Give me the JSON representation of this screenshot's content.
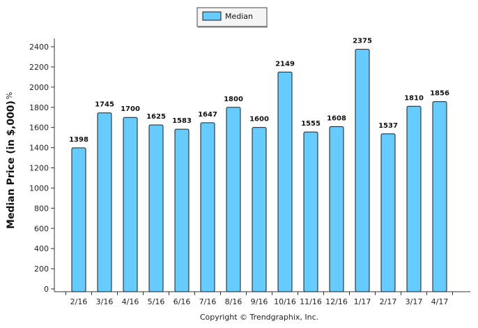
{
  "chart_data": {
    "type": "bar",
    "categories": [
      "2/16",
      "3/16",
      "4/16",
      "5/16",
      "6/16",
      "7/16",
      "8/16",
      "9/16",
      "10/16",
      "11/16",
      "12/16",
      "1/17",
      "2/17",
      "3/17",
      "4/17"
    ],
    "series": [
      {
        "name": "Median",
        "values": [
          1398,
          1745,
          1700,
          1625,
          1583,
          1647,
          1800,
          1600,
          2149,
          1555,
          1608,
          2375,
          1537,
          1810,
          1856
        ]
      }
    ],
    "title": "",
    "xlabel": "",
    "ylabel": "Median Price (in $,000)",
    "ylabel_suffix": "%",
    "ylim": [
      0,
      2500
    ],
    "yticks": [
      0,
      200,
      400,
      600,
      800,
      1000,
      1200,
      1400,
      1600,
      1800,
      2000,
      2200,
      2400
    ],
    "grid": false,
    "legend_position": "top-center",
    "bar_color": "#66ccff",
    "bar_stroke": "#1a1a1a"
  },
  "footer": {
    "copyright": "Copyright © Trendgraphix, Inc."
  }
}
